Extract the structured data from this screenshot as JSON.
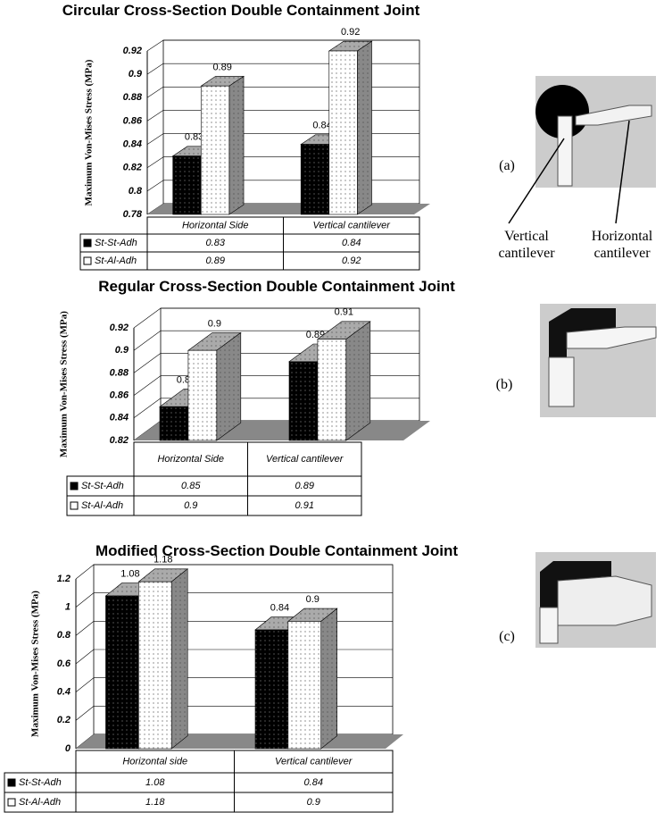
{
  "chart_data": [
    {
      "type": "bar",
      "title": "Circular Cross-Section Double Containment Joint",
      "y_label": "Maximum Von-Mises Stress (MPa)",
      "categories": [
        "Horizontal Side",
        "Vertical cantilever"
      ],
      "series": [
        {
          "name": "St-St-Adh",
          "color": "#000000",
          "values": [
            0.83,
            0.84
          ]
        },
        {
          "name": "St-Al-Adh",
          "color": "#ffffff",
          "values": [
            0.89,
            0.92
          ]
        }
      ],
      "ylim": [
        0.78,
        0.92
      ],
      "yticks": [
        0.78,
        0.8,
        0.82,
        0.84,
        0.86,
        0.88,
        0.9,
        0.92
      ],
      "grid": true
    },
    {
      "type": "bar",
      "title": "Regular Cross-Section Double Containment Joint",
      "y_label": "Maximum Von-Mises Stress (MPa)",
      "categories": [
        "Horizontal Side",
        "Vertical cantilever"
      ],
      "series": [
        {
          "name": "St-St-Adh",
          "color": "#000000",
          "values": [
            0.85,
            0.89
          ]
        },
        {
          "name": "St-Al-Adh",
          "color": "#ffffff",
          "values": [
            0.9,
            0.91
          ]
        }
      ],
      "ylim": [
        0.82,
        0.92
      ],
      "yticks": [
        0.82,
        0.84,
        0.86,
        0.88,
        0.9,
        0.92
      ],
      "grid": true
    },
    {
      "type": "bar",
      "title": "Modified Cross-Section Double Containment Joint",
      "y_label": "Maximum Von-Mises Stress (MPa)",
      "categories": [
        "Horizontal side",
        "Vertical cantilever"
      ],
      "series": [
        {
          "name": "St-St-Adh",
          "color": "#000000",
          "values": [
            1.08,
            0.84
          ]
        },
        {
          "name": "St-Al-Adh",
          "color": "#ffffff",
          "values": [
            1.18,
            0.9
          ]
        }
      ],
      "ylim": [
        0,
        1.2
      ],
      "yticks": [
        0,
        0.2,
        0.4,
        0.6,
        0.8,
        1,
        1.2
      ],
      "grid": true
    }
  ],
  "images": [
    {
      "label": "(a)",
      "annotations": [
        "Vertical cantilever",
        "Horizontal cantilever"
      ]
    },
    {
      "label": "(b)"
    },
    {
      "label": "(c)"
    }
  ]
}
